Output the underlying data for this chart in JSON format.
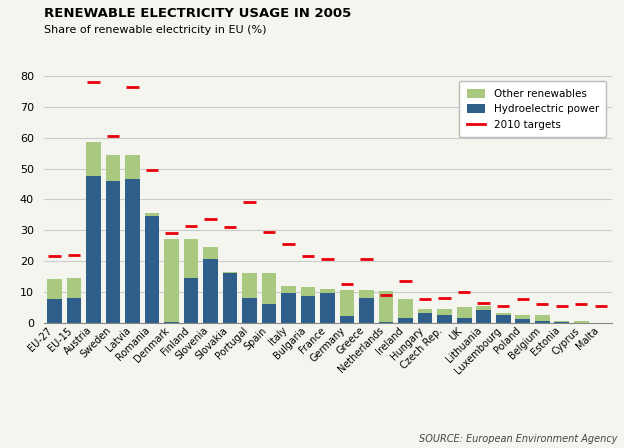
{
  "title": "RENEWABLE ELECTRICITY USAGE IN 2005",
  "subtitle": "Share of renewable electricity in EU (%)",
  "source": "SOURCE: European Environment Agency",
  "categories": [
    "EU-27",
    "EU-15",
    "Austria",
    "Sweden",
    "Latvia",
    "Romania",
    "Denmark",
    "Finland",
    "Slovenia",
    "Slovakia",
    "Portugal",
    "Spain",
    "Italy",
    "Bulgaria",
    "France",
    "Germany",
    "Greece",
    "Netherlands",
    "Ireland",
    "Hungary",
    "Czech Rep.",
    "UK",
    "Lithuania",
    "Luxembourg",
    "Poland",
    "Belgium",
    "Estonia",
    "Cyprus",
    "Malta"
  ],
  "hydro": [
    7.5,
    8.0,
    47.5,
    46.0,
    46.5,
    34.5,
    0.1,
    14.5,
    20.5,
    16.0,
    8.0,
    6.0,
    9.5,
    8.5,
    9.5,
    2.0,
    8.0,
    0.2,
    1.5,
    3.0,
    2.5,
    1.5,
    4.0,
    2.5,
    1.0,
    0.5,
    0.3,
    0.0,
    0.0
  ],
  "other": [
    6.5,
    6.5,
    11.0,
    8.5,
    8.0,
    1.0,
    27.0,
    12.5,
    4.0,
    0.5,
    8.0,
    10.0,
    2.5,
    3.0,
    1.5,
    8.5,
    2.5,
    10.0,
    6.0,
    1.5,
    2.0,
    3.5,
    1.5,
    0.5,
    1.5,
    2.0,
    0.3,
    0.5,
    0.0
  ],
  "targets": [
    21.5,
    22.0,
    78.0,
    60.5,
    76.5,
    49.5,
    29.0,
    31.5,
    33.5,
    31.0,
    39.0,
    29.5,
    25.5,
    21.5,
    20.5,
    12.5,
    20.5,
    9.0,
    13.5,
    7.5,
    8.0,
    10.0,
    6.5,
    5.5,
    7.5,
    6.0,
    5.5,
    6.0,
    5.5
  ],
  "hydro_color": "#2e5f8a",
  "other_color": "#a8c97f",
  "target_color": "#e8000a",
  "bg_color": "#f5f5ef",
  "grid_color": "#cccccc",
  "ylim": [
    0,
    80
  ],
  "yticks": [
    0,
    10,
    20,
    30,
    40,
    50,
    60,
    70,
    80
  ]
}
